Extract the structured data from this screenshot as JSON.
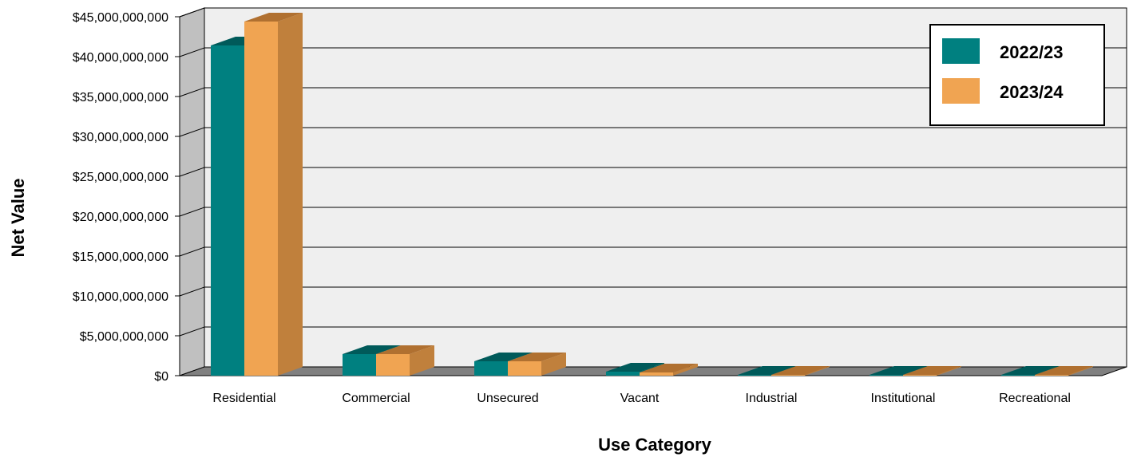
{
  "chart_data": {
    "type": "bar",
    "title": "",
    "xlabel": "Use Category",
    "ylabel": "Net Value",
    "categories": [
      "Residential",
      "Commercial",
      "Unsecured",
      "Vacant",
      "Industrial",
      "Institutional",
      "Recreational"
    ],
    "series": [
      {
        "name": "2022/23",
        "values": [
          41400000000,
          2700000000,
          1800000000,
          500000000,
          50000000,
          20000000,
          5000000
        ]
      },
      {
        "name": "2023/24",
        "values": [
          44400000000,
          2700000000,
          1800000000,
          400000000,
          80000000,
          20000000,
          5000000
        ]
      }
    ],
    "ylim": [
      0,
      45000000000
    ],
    "yticks": [
      0,
      5000000000,
      10000000000,
      15000000000,
      20000000000,
      25000000000,
      30000000000,
      35000000000,
      40000000000,
      45000000000
    ],
    "ytick_labels": [
      "$0",
      "$5,000,000,000",
      "$10,000,000,000",
      "$15,000,000,000",
      "$20,000,000,000",
      "$25,000,000,000",
      "$30,000,000,000",
      "$35,000,000,000",
      "$40,000,000,000",
      "$45,000,000,000"
    ],
    "grid": true,
    "legend_position": "top-right",
    "colors": {
      "series1_front": "#008080",
      "series1_top": "#005a5a",
      "series1_side": "#006666",
      "series2_front": "#f0a452",
      "series2_top": "#b07030",
      "series2_side": "#c0803c",
      "plot_background": "#efefef",
      "left_wall": "#c0c0c0",
      "floor": "#808080",
      "gridline": "#000000"
    }
  }
}
